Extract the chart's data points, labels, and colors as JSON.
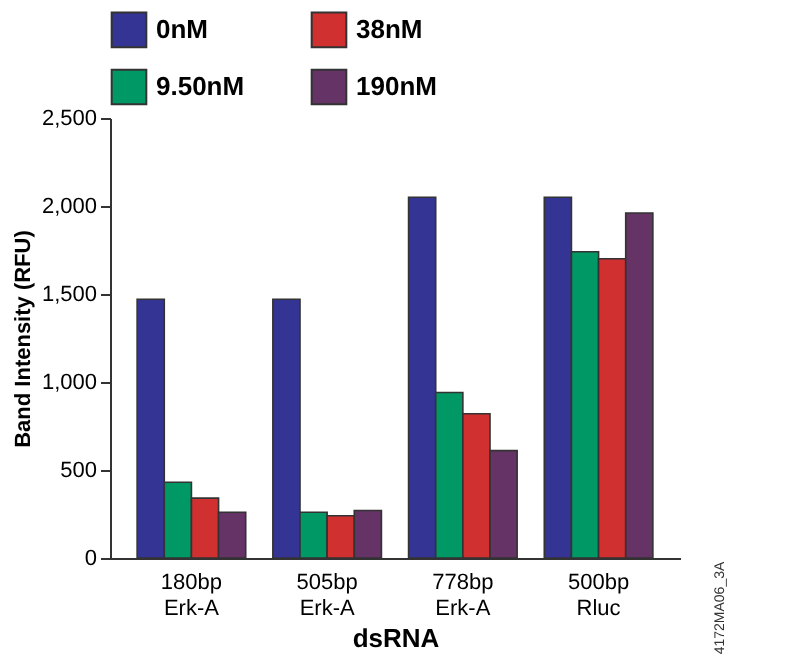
{
  "chart_data": {
    "type": "bar",
    "xlabel": "dsRNA",
    "ylabel": "Band Intensity (RFU)",
    "categories": [
      "180bp Erk-A",
      "505bp Erk-A",
      "778bp Erk-A",
      "500bp Rluc"
    ],
    "series": [
      {
        "name": "0nM",
        "color": "#343494",
        "values": [
          1470,
          1470,
          2050,
          2050
        ]
      },
      {
        "name": "9.50nM",
        "color": "#009966",
        "values": [
          430,
          260,
          940,
          1740
        ]
      },
      {
        "name": "38nM",
        "color": "#d03030",
        "values": [
          340,
          240,
          820,
          1700
        ]
      },
      {
        "name": "190nM",
        "color": "#663366",
        "values": [
          260,
          270,
          610,
          1960
        ]
      }
    ],
    "ylim": [
      0,
      2500
    ],
    "yticks": [
      0,
      500,
      {
        "value": 1000,
        "label": "1,000"
      },
      {
        "value": 1500,
        "label": "1,500"
      },
      {
        "value": 2000,
        "label": "2,000"
      },
      {
        "value": 2500,
        "label": "2,500"
      }
    ],
    "grid": false,
    "legend": "top",
    "annotations": [
      "4172MA06_3A"
    ]
  }
}
